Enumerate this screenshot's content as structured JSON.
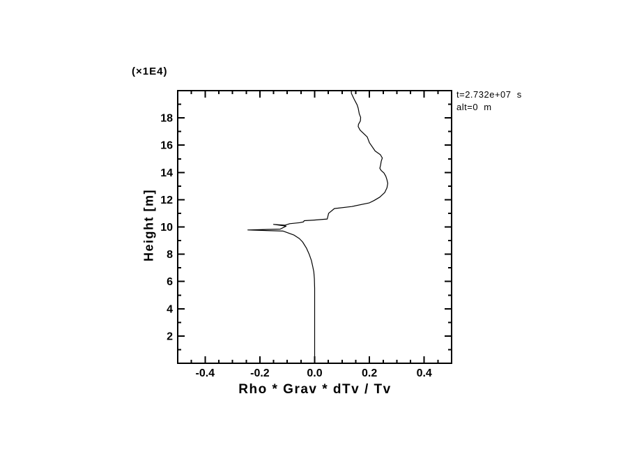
{
  "page": {
    "background": "#ffffff",
    "foreground": "#000000"
  },
  "annotation": {
    "line1": "t=2.732e+07  s",
    "line2": "alt=0  m"
  },
  "chart_data": {
    "type": "line",
    "title": "",
    "xlabel": "Rho * Grav * dTv / Tv",
    "ylabel": "Height [m]",
    "y_scale_label": "(×1E4)",
    "xlim": [
      -0.5,
      0.5
    ],
    "ylim": [
      0,
      20
    ],
    "grid": false,
    "frame_ticks_all_sides": true,
    "x_major_ticks": [
      -0.4,
      -0.2,
      0.0,
      0.2,
      0.4
    ],
    "x_major_labels": [
      "-0.4",
      "-0.2",
      "0.0",
      "0.2",
      "0.4"
    ],
    "x_minor_step": 0.05,
    "y_major_ticks": [
      2,
      4,
      6,
      8,
      10,
      12,
      14,
      16,
      18
    ],
    "y_major_labels": [
      "2",
      "4",
      "6",
      "8",
      "10",
      "12",
      "14",
      "16",
      "18"
    ],
    "y_minor_step": 1,
    "line_color": "#000000",
    "series": [
      {
        "name": "rho-grav-dtv-profile",
        "points": [
          [
            0.0,
            0.08
          ],
          [
            0.0,
            5.5
          ],
          [
            -0.001,
            6.2
          ],
          [
            -0.003,
            6.7
          ],
          [
            -0.007,
            7.1
          ],
          [
            -0.012,
            7.55
          ],
          [
            -0.02,
            8.0
          ],
          [
            -0.03,
            8.45
          ],
          [
            -0.044,
            8.9
          ],
          [
            -0.056,
            9.15
          ],
          [
            -0.075,
            9.4
          ],
          [
            -0.095,
            9.55
          ],
          [
            -0.116,
            9.7
          ],
          [
            -0.244,
            9.78
          ],
          [
            -0.126,
            9.84
          ],
          [
            -0.113,
            9.97
          ],
          [
            -0.104,
            10.06
          ],
          [
            -0.15,
            10.19
          ],
          [
            -0.108,
            10.13
          ],
          [
            -0.091,
            10.24
          ],
          [
            -0.056,
            10.31
          ],
          [
            -0.041,
            10.37
          ],
          [
            -0.038,
            10.46
          ],
          [
            -0.005,
            10.5
          ],
          [
            0.046,
            10.58
          ],
          [
            0.051,
            11.0
          ],
          [
            0.072,
            11.35
          ],
          [
            0.136,
            11.5
          ],
          [
            0.2,
            11.77
          ],
          [
            0.217,
            11.94
          ],
          [
            0.238,
            12.19
          ],
          [
            0.256,
            12.53
          ],
          [
            0.264,
            12.87
          ],
          [
            0.267,
            13.2
          ],
          [
            0.264,
            13.46
          ],
          [
            0.26,
            13.71
          ],
          [
            0.253,
            13.96
          ],
          [
            0.243,
            14.14
          ],
          [
            0.238,
            14.3
          ],
          [
            0.241,
            14.56
          ],
          [
            0.243,
            14.81
          ],
          [
            0.247,
            15.06
          ],
          [
            0.24,
            15.3
          ],
          [
            0.221,
            15.57
          ],
          [
            0.2,
            16.18
          ],
          [
            0.192,
            16.6
          ],
          [
            0.179,
            16.85
          ],
          [
            0.166,
            17.1
          ],
          [
            0.159,
            17.36
          ],
          [
            0.16,
            17.53
          ],
          [
            0.167,
            17.78
          ],
          [
            0.168,
            18.04
          ],
          [
            0.163,
            18.29
          ],
          [
            0.159,
            18.71
          ],
          [
            0.155,
            18.96
          ],
          [
            0.144,
            19.38
          ],
          [
            0.134,
            19.81
          ],
          [
            0.134,
            20.0
          ]
        ]
      }
    ],
    "annotations": [
      "t=2.732e+07  s",
      "alt=0  m"
    ]
  }
}
